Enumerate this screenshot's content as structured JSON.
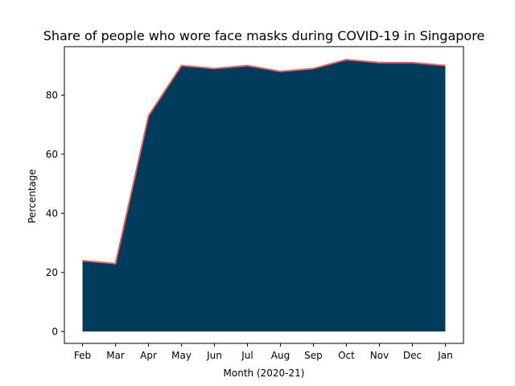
{
  "chart_data": {
    "type": "area",
    "title": "Share of people who wore face masks during COVID-19 in Singapore",
    "xlabel": "Month (2020-21)",
    "ylabel": "Percentage",
    "categories": [
      "Feb",
      "Mar",
      "Apr",
      "May",
      "Jun",
      "Jul",
      "Aug",
      "Sep",
      "Oct",
      "Nov",
      "Dec",
      "Jan"
    ],
    "values": [
      24,
      23,
      73,
      90,
      89,
      90,
      88,
      89,
      92,
      91,
      91,
      90
    ],
    "ylim": [
      -4,
      96.4
    ],
    "yticks": [
      0,
      20,
      40,
      60,
      80
    ],
    "grid": false,
    "fill_color": "#003b5c",
    "line_color": "#e06666"
  }
}
